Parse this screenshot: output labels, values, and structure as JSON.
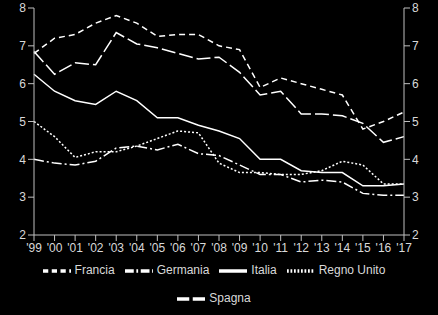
{
  "chart_data": {
    "type": "line",
    "categories": [
      "'99",
      "'00",
      "'01",
      "'02",
      "'03",
      "'04",
      "'05",
      "'06",
      "'07",
      "'08",
      "'09",
      "'10",
      "'11",
      "'12",
      "'13",
      "'14",
      "'15",
      "'16",
      "'17"
    ],
    "series": [
      {
        "name": "Francia",
        "color": "#ffffff",
        "line_style": "dashed",
        "values": [
          6.8,
          7.2,
          7.3,
          7.6,
          7.8,
          7.6,
          7.25,
          7.3,
          7.3,
          7.0,
          6.9,
          5.9,
          6.15,
          6.0,
          5.85,
          5.7,
          4.8,
          5.0,
          5.25
        ]
      },
      {
        "name": "Germania",
        "color": "#ffffff",
        "line_style": "dashdot",
        "values": [
          4.0,
          3.9,
          3.85,
          3.95,
          4.3,
          4.35,
          4.25,
          4.4,
          4.15,
          4.1,
          3.85,
          3.6,
          3.6,
          3.4,
          3.45,
          3.4,
          3.1,
          3.05,
          3.05
        ]
      },
      {
        "name": "Italia",
        "color": "#ffffff",
        "line_style": "solid",
        "values": [
          6.25,
          5.8,
          5.55,
          5.45,
          5.8,
          5.55,
          5.1,
          5.1,
          4.9,
          4.75,
          4.55,
          4.0,
          4.0,
          3.7,
          3.65,
          3.65,
          3.3,
          3.3,
          3.35
        ]
      },
      {
        "name": "Spagna",
        "color": "#ffffff",
        "line_style": "longdash",
        "values": [
          6.85,
          6.25,
          6.55,
          6.5,
          7.35,
          7.05,
          6.95,
          6.8,
          6.65,
          6.7,
          6.3,
          5.7,
          5.8,
          5.2,
          5.2,
          5.15,
          4.95,
          4.45,
          4.6
        ]
      },
      {
        "name": "Regno Unito",
        "color": "#ffffff",
        "line_style": "dotted",
        "values": [
          5.0,
          4.6,
          4.05,
          4.2,
          4.2,
          4.35,
          4.55,
          4.75,
          4.7,
          3.9,
          3.65,
          3.65,
          3.6,
          3.6,
          3.7,
          3.95,
          3.85,
          3.35,
          3.35
        ]
      }
    ],
    "ylim": [
      2,
      8
    ],
    "yticks": [
      2,
      3,
      4,
      5,
      6,
      7,
      8
    ],
    "y2lim": [
      2,
      8
    ],
    "y2ticks": [
      2,
      3,
      4,
      5,
      6,
      7,
      8
    ],
    "grid": false,
    "legend": "bottom"
  }
}
